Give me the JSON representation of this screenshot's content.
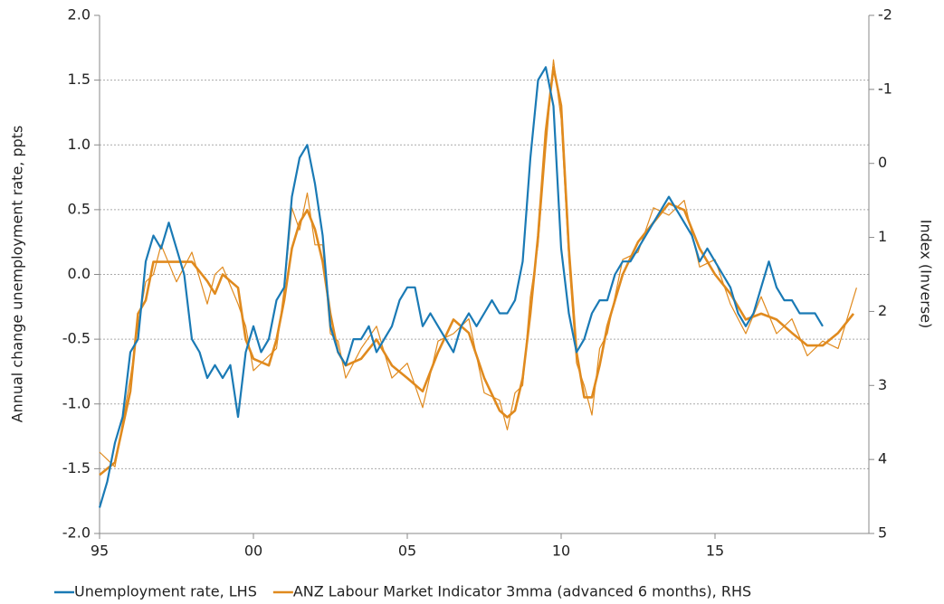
{
  "chart_data": {
    "type": "line",
    "ylabel": "Annual change unemployment rate, ppts",
    "y2label": "Index (Inverse)",
    "xlim": [
      1995,
      2020
    ],
    "xticks": [
      {
        "value": 1995,
        "label": "95"
      },
      {
        "value": 2000,
        "label": "00"
      },
      {
        "value": 2005,
        "label": "05"
      },
      {
        "value": 2010,
        "label": "10"
      },
      {
        "value": 2015,
        "label": "15"
      }
    ],
    "ylim": [
      -2,
      2
    ],
    "yticks": [
      {
        "value": -2,
        "label": "-2.0"
      },
      -1.5,
      {
        "value": -1,
        "label": "-1.0"
      },
      -0.5,
      {
        "value": 0,
        "label": "0.0"
      },
      0.5,
      {
        "value": 1,
        "label": "1.0"
      },
      1.5,
      {
        "value": 2,
        "label": "2.0"
      }
    ],
    "y2lim": [
      5,
      -2
    ],
    "y2ticks": [
      -2,
      -1,
      0,
      1,
      2,
      3,
      4,
      5
    ],
    "y2_inverted": true,
    "grid": true,
    "legend": "bottom",
    "series": [
      {
        "name": "Unemployment rate, LHS",
        "color": "#1a7ab5",
        "width": 2.2,
        "x": [
          1995,
          1995.25,
          1995.5,
          1995.75,
          1996,
          1996.25,
          1996.5,
          1996.75,
          1997,
          1997.25,
          1997.5,
          1997.75,
          1998,
          1998.25,
          1998.5,
          1998.75,
          1999,
          1999.25,
          1999.5,
          1999.75,
          2000,
          2000.25,
          2000.5,
          2000.75,
          2001,
          2001.25,
          2001.5,
          2001.75,
          2002,
          2002.25,
          2002.5,
          2002.75,
          2003,
          2003.25,
          2003.5,
          2003.75,
          2004,
          2004.25,
          2004.5,
          2004.75,
          2005,
          2005.25,
          2005.5,
          2005.75,
          2006,
          2006.25,
          2006.5,
          2006.75,
          2007,
          2007.25,
          2007.5,
          2007.75,
          2008,
          2008.25,
          2008.5,
          2008.75,
          2009,
          2009.25,
          2009.5,
          2009.75,
          2010,
          2010.25,
          2010.5,
          2010.75,
          2011,
          2011.25,
          2011.5,
          2011.75,
          2012,
          2012.25,
          2012.5,
          2012.75,
          2013,
          2013.25,
          2013.5,
          2013.75,
          2014,
          2014.25,
          2014.5,
          2014.75,
          2015,
          2015.25,
          2015.5,
          2015.75,
          2016,
          2016.25,
          2016.5,
          2016.75,
          2017,
          2017.25,
          2017.5,
          2017.75,
          2018,
          2018.25,
          2018.5
        ],
        "values": [
          -1.8,
          -1.6,
          -1.3,
          -1.1,
          -0.6,
          -0.5,
          0.1,
          0.3,
          0.2,
          0.4,
          0.2,
          0.0,
          -0.5,
          -0.6,
          -0.8,
          -0.7,
          -0.8,
          -0.7,
          -1.1,
          -0.6,
          -0.4,
          -0.6,
          -0.5,
          -0.2,
          -0.1,
          0.6,
          0.9,
          1.0,
          0.7,
          0.3,
          -0.4,
          -0.6,
          -0.7,
          -0.5,
          -0.5,
          -0.4,
          -0.6,
          -0.5,
          -0.4,
          -0.2,
          -0.1,
          -0.1,
          -0.4,
          -0.3,
          -0.4,
          -0.5,
          -0.6,
          -0.4,
          -0.3,
          -0.4,
          -0.3,
          -0.2,
          -0.3,
          -0.3,
          -0.2,
          0.1,
          0.9,
          1.5,
          1.6,
          1.3,
          0.2,
          -0.3,
          -0.6,
          -0.5,
          -0.3,
          -0.2,
          -0.2,
          0.0,
          0.1,
          0.1,
          0.2,
          0.3,
          0.4,
          0.5,
          0.6,
          0.5,
          0.4,
          0.3,
          0.1,
          0.2,
          0.1,
          0.0,
          -0.1,
          -0.3,
          -0.4,
          -0.3,
          -0.1,
          0.1,
          -0.1,
          -0.2,
          -0.2,
          -0.3,
          -0.3,
          -0.3,
          -0.4
        ]
      },
      {
        "name": "ANZ Labour Market Indicator 3mma (advanced 6 months), RHS",
        "color": "#e08a1e",
        "width": 2.6,
        "axis": "y2",
        "x": [
          1995,
          1995.5,
          1996,
          1996.25,
          1996.5,
          1996.75,
          1997,
          1997.5,
          1998,
          1998.5,
          1998.75,
          1999,
          1999.5,
          1999.75,
          2000,
          2000.5,
          2000.75,
          2001,
          2001.25,
          2001.5,
          2001.75,
          2002,
          2002.25,
          2002.5,
          2002.75,
          2003,
          2003.5,
          2004,
          2004.5,
          2005,
          2005.5,
          2006,
          2006.5,
          2007,
          2007.5,
          2008,
          2008.25,
          2008.5,
          2008.75,
          2009,
          2009.25,
          2009.5,
          2009.75,
          2010,
          2010.25,
          2010.5,
          2010.75,
          2011,
          2011.25,
          2011.5,
          2012,
          2012.5,
          2013,
          2013.5,
          2014,
          2014.5,
          2015,
          2015.5,
          2016,
          2016.5,
          2017,
          2017.5,
          2018,
          2018.5,
          2019,
          2019.5
        ],
        "values": [
          4.21,
          4.04,
          3.08,
          2.03,
          1.85,
          1.33,
          1.33,
          1.33,
          1.33,
          1.59,
          1.76,
          1.5,
          1.68,
          2.38,
          2.64,
          2.73,
          2.38,
          1.85,
          1.15,
          0.8,
          0.63,
          0.89,
          1.33,
          2.03,
          2.55,
          2.73,
          2.64,
          2.38,
          2.73,
          2.9,
          3.08,
          2.55,
          2.11,
          2.29,
          2.9,
          3.34,
          3.43,
          3.34,
          2.9,
          2.03,
          0.98,
          -0.43,
          -1.3,
          -0.78,
          1.15,
          2.55,
          3.16,
          3.16,
          2.73,
          2.2,
          1.5,
          1.06,
          0.8,
          0.54,
          0.63,
          1.15,
          1.5,
          1.76,
          2.11,
          2.03,
          2.11,
          2.29,
          2.46,
          2.46,
          2.29,
          2.03
        ]
      },
      {
        "color": "#e08a1e",
        "width": 1.2,
        "axis": "y2",
        "x": [
          1995,
          1995.5,
          1996,
          1996.25,
          1996.5,
          1996.75,
          1997,
          1997.5,
          1998,
          1998.5,
          1998.75,
          1999,
          1999.5,
          1999.75,
          2000,
          2000.5,
          2000.75,
          2001,
          2001.25,
          2001.5,
          2001.75,
          2002,
          2002.25,
          2002.5,
          2002.75,
          2003,
          2003.5,
          2004,
          2004.5,
          2005,
          2005.5,
          2006,
          2006.5,
          2007,
          2007.5,
          2008,
          2008.25,
          2008.5,
          2008.75,
          2009,
          2009.25,
          2009.5,
          2009.75,
          2010,
          2010.25,
          2010.5,
          2010.75,
          2011,
          2011.25,
          2011.5,
          2012,
          2012.5,
          2013,
          2013.5,
          2014,
          2014.5,
          2015,
          2015.5,
          2016,
          2016.5,
          2017,
          2017.5,
          2018,
          2018.5,
          2019,
          2019.6
        ],
        "values": [
          3.9,
          4.1,
          2.9,
          2.2,
          1.6,
          1.5,
          1.1,
          1.6,
          1.2,
          1.9,
          1.5,
          1.4,
          1.9,
          2.2,
          2.8,
          2.6,
          2.5,
          1.7,
          0.6,
          0.9,
          0.4,
          1.1,
          1.1,
          2.3,
          2.4,
          2.9,
          2.5,
          2.2,
          2.9,
          2.7,
          3.3,
          2.4,
          2.3,
          2.1,
          3.1,
          3.2,
          3.6,
          3.1,
          3.0,
          1.8,
          1.1,
          -0.2,
          -1.4,
          -0.6,
          1.3,
          2.7,
          3.0,
          3.4,
          2.5,
          2.3,
          1.3,
          1.2,
          0.6,
          0.7,
          0.5,
          1.4,
          1.3,
          1.9,
          2.3,
          1.8,
          2.3,
          2.1,
          2.6,
          2.4,
          2.5,
          1.68
        ]
      }
    ]
  }
}
